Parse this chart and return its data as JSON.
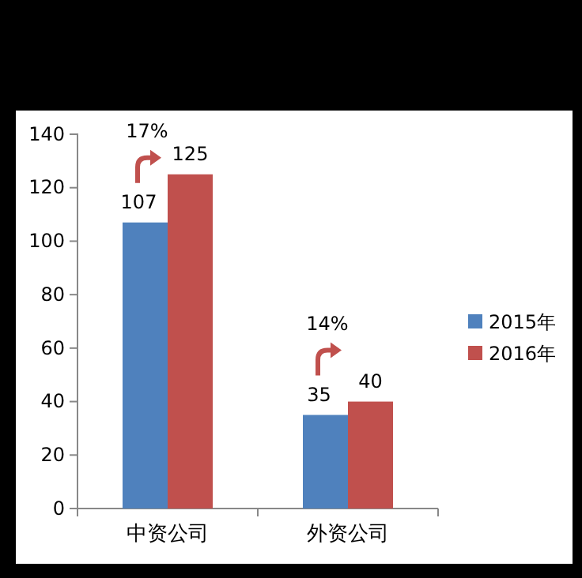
{
  "chart_data": {
    "type": "bar",
    "categories": [
      "中资公司",
      "外资公司"
    ],
    "series": [
      {
        "name": "2015年",
        "color": "#4f81bd",
        "values": [
          107,
          35
        ]
      },
      {
        "name": "2016年",
        "color": "#c0504d",
        "values": [
          125,
          40
        ]
      }
    ],
    "ylim": [
      0,
      140
    ],
    "yticks": [
      0,
      20,
      40,
      60,
      80,
      100,
      120,
      140
    ],
    "data_labels": true,
    "legend": "right",
    "grid": false,
    "annotations": [
      "17%",
      "14%"
    ]
  }
}
